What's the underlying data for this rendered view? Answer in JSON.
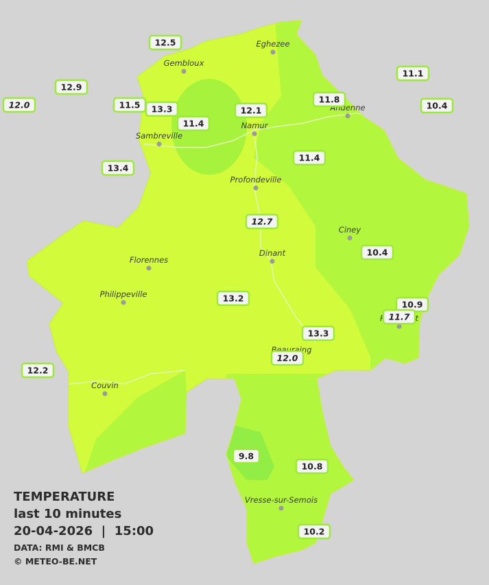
{
  "legend": {
    "title": "TEMPERATURE",
    "subtitle": "last 10 minutes",
    "datetime": "20-04-2026  |  15:00",
    "source": "DATA: RMI & BMCB",
    "copyright": "© METEO-BE.NET"
  },
  "cities": [
    "Eghezee",
    "Gembloux",
    "Andenne",
    "Namur",
    "Sambreville",
    "Profondeville",
    "Ciney",
    "Dinant",
    "Florennes",
    "Philippeville",
    "Couvin",
    "Vresse-sur-Semois",
    "Rochefort",
    "Beauraing"
  ],
  "stations": [
    {
      "label": "12.5"
    },
    {
      "label": "12.9"
    },
    {
      "label": "12.0",
      "italic": true
    },
    {
      "label": "11.5"
    },
    {
      "label": "13.3"
    },
    {
      "label": "11.4"
    },
    {
      "label": "12.1"
    },
    {
      "label": "11.8"
    },
    {
      "label": "11.1"
    },
    {
      "label": "10.4"
    },
    {
      "label": "13.4"
    },
    {
      "label": "11.4"
    },
    {
      "label": "12.7",
      "italic": true
    },
    {
      "label": "10.4"
    },
    {
      "label": "13.2"
    },
    {
      "label": "10.9"
    },
    {
      "label": "11.7",
      "italic": true
    },
    {
      "label": "13.3"
    },
    {
      "label": "12.0",
      "italic": true
    },
    {
      "label": "12.2"
    },
    {
      "label": "9.8"
    },
    {
      "label": "10.8"
    },
    {
      "label": "10.2"
    }
  ]
}
